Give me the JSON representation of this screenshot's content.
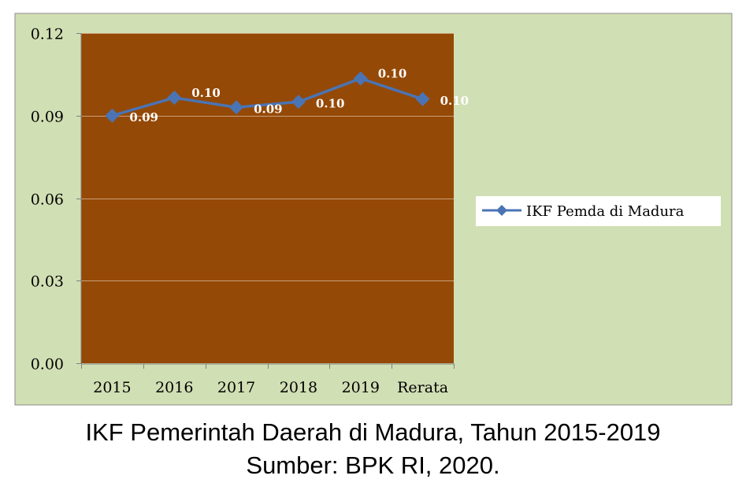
{
  "caption": {
    "title": "IKF Pemerintah Daerah di Madura, Tahun 2015-2019",
    "source": "Sumber: BPK RI, 2020."
  },
  "colors": {
    "outer_background": "#d1dfb4",
    "plot_background": "#954906",
    "line": "#4a74b4",
    "gridline": "#c9a07a",
    "data_label": "#ffffff"
  },
  "chart_data": {
    "type": "line",
    "title": "",
    "xlabel": "",
    "ylabel": "",
    "categories": [
      "2015",
      "2016",
      "2017",
      "2018",
      "2019",
      "Rerata"
    ],
    "series": [
      {
        "name": "IKF Pemda di Madura",
        "values": [
          0.09,
          0.0965,
          0.093,
          0.095,
          0.1035,
          0.096
        ],
        "data_labels": [
          "0.09",
          "0.10",
          "0.09",
          "0.10",
          "0.10",
          "0.10"
        ],
        "marker": "diamond"
      }
    ],
    "ylim": [
      0,
      0.12
    ],
    "yticks": [
      0.0,
      0.03,
      0.06,
      0.09,
      0.12
    ],
    "ytick_labels": [
      "0.00",
      "0.03",
      "0.06",
      "0.09",
      "0.12"
    ],
    "grid": "horizontal",
    "legend": "right"
  }
}
